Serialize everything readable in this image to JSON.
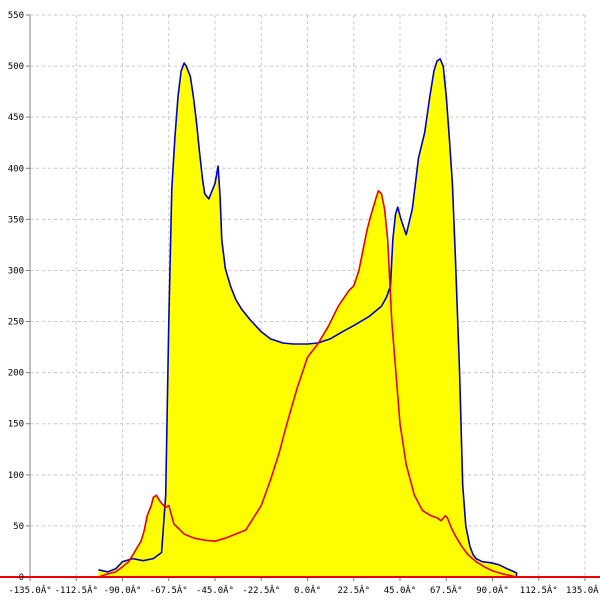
{
  "chart_data": {
    "type": "area",
    "title": "",
    "xlabel": "",
    "ylabel": "",
    "xlim": [
      -135,
      135
    ],
    "ylim": [
      0,
      550
    ],
    "grid": true,
    "x_ticks": [
      -135,
      -112.5,
      -90,
      -67.5,
      -45,
      -22.5,
      0,
      22.5,
      45,
      67.5,
      90,
      112.5,
      135
    ],
    "x_tick_labels": [
      "-135.0Â°",
      "-112.5Â°",
      "-90.0Â°",
      "-67.5Â°",
      "-45.0Â°",
      "-22.5Â°",
      "0.0Â°",
      "22.5Â°",
      "45.0Â°",
      "67.5Â°",
      "90.0Â°",
      "112.5Â°",
      "135.0Â°"
    ],
    "y_ticks": [
      0,
      50,
      100,
      150,
      200,
      250,
      300,
      350,
      400,
      450,
      500,
      550
    ],
    "y_tick_labels": [
      "0",
      "50",
      "100",
      "150",
      "200",
      "250",
      "300",
      "350",
      "400",
      "450",
      "500",
      "550"
    ],
    "colors": {
      "fill": "#ffff00",
      "series1": "#0000cc",
      "series2": "#ee0000",
      "grid": "#c8c8c8",
      "axis": "#808080"
    },
    "series": [
      {
        "x": [
          -101.7,
          -97.2,
          -93.3,
          -90.0,
          -85.0,
          -80.0,
          -75.0,
          -71.0,
          -69.0,
          -67.5,
          -66.0,
          -64.5,
          -63.0,
          -61.5,
          -60.0,
          -59.0,
          -57.0,
          -55.5,
          -54.0,
          -52.5,
          -51.0,
          -50.0,
          -48.0,
          -45.0,
          -43.5,
          -42.5,
          -41.7,
          -40.0,
          -37.5,
          -35.0,
          -32.0,
          -28.0,
          -22.5,
          -18.0,
          -12.0,
          -7.0,
          0.0,
          5.0,
          11.0,
          17.0,
          22.5,
          30.0,
          36.0,
          38.5,
          40.4,
          41.5,
          42.8,
          43.9,
          45.5,
          48.0,
          51.0,
          54.0,
          57.0,
          59.5,
          61.5,
          63.0,
          64.5,
          66.0,
          67.5,
          69.0,
          70.5,
          72.0,
          74.0,
          75.5,
          77.0,
          79.0,
          80.5,
          82.0,
          85.0,
          89.0,
          93.0,
          97.2,
          101.7,
          101.7
        ],
        "y": [
          7,
          5,
          8,
          15,
          18,
          16,
          18,
          24,
          80,
          250,
          380,
          430,
          470,
          495,
          503,
          500,
          490,
          470,
          445,
          415,
          388,
          375,
          370,
          385,
          402,
          372,
          330,
          302,
          285,
          272,
          262,
          252,
          240,
          233,
          229,
          228,
          228,
          229,
          233,
          240,
          246,
          255,
          265,
          274,
          285,
          330,
          355,
          362,
          350,
          335,
          360,
          410,
          435,
          470,
          495,
          505,
          507,
          500,
          470,
          430,
          385,
          310,
          200,
          90,
          50,
          30,
          22,
          18,
          15,
          14,
          12,
          8,
          4,
          0
        ]
      },
      {
        "x": [
          -101.7,
          -97.2,
          -93.3,
          -90.0,
          -87.0,
          -84.0,
          -81.0,
          -79.5,
          -78.0,
          -76.0,
          -75.0,
          -73.5,
          -72.0,
          -71.0,
          -69.0,
          -67.5,
          -65.0,
          -60.0,
          -55.0,
          -50.0,
          -45.0,
          -40.0,
          -35.0,
          -30.0,
          -22.5,
          -18.0,
          -14.0,
          -10.0,
          -5.0,
          0.0,
          5.0,
          10.0,
          15.0,
          20.0,
          22.5,
          25.0,
          27.0,
          29.0,
          31.0,
          32.5,
          33.5,
          34.5,
          36.0,
          37.5,
          39.0,
          41.0,
          43.0,
          45.0,
          48.0,
          52.0,
          56.0,
          60.0,
          63.0,
          65.0,
          67.0,
          68.0,
          70.0,
          72.0,
          75.0,
          78.0,
          82.0,
          86.0,
          90.0,
          95.0,
          101.7
        ],
        "y": [
          0,
          3,
          5,
          10,
          15,
          25,
          35,
          45,
          60,
          70,
          78,
          80,
          75,
          72,
          68,
          70,
          52,
          42,
          38,
          36,
          35,
          38,
          42,
          46,
          70,
          95,
          120,
          150,
          185,
          215,
          228,
          245,
          265,
          280,
          285,
          300,
          320,
          340,
          355,
          365,
          372,
          378,
          375,
          360,
          330,
          250,
          200,
          150,
          110,
          80,
          65,
          60,
          58,
          55,
          60,
          58,
          48,
          40,
          30,
          22,
          15,
          10,
          6,
          3,
          0
        ]
      }
    ]
  }
}
